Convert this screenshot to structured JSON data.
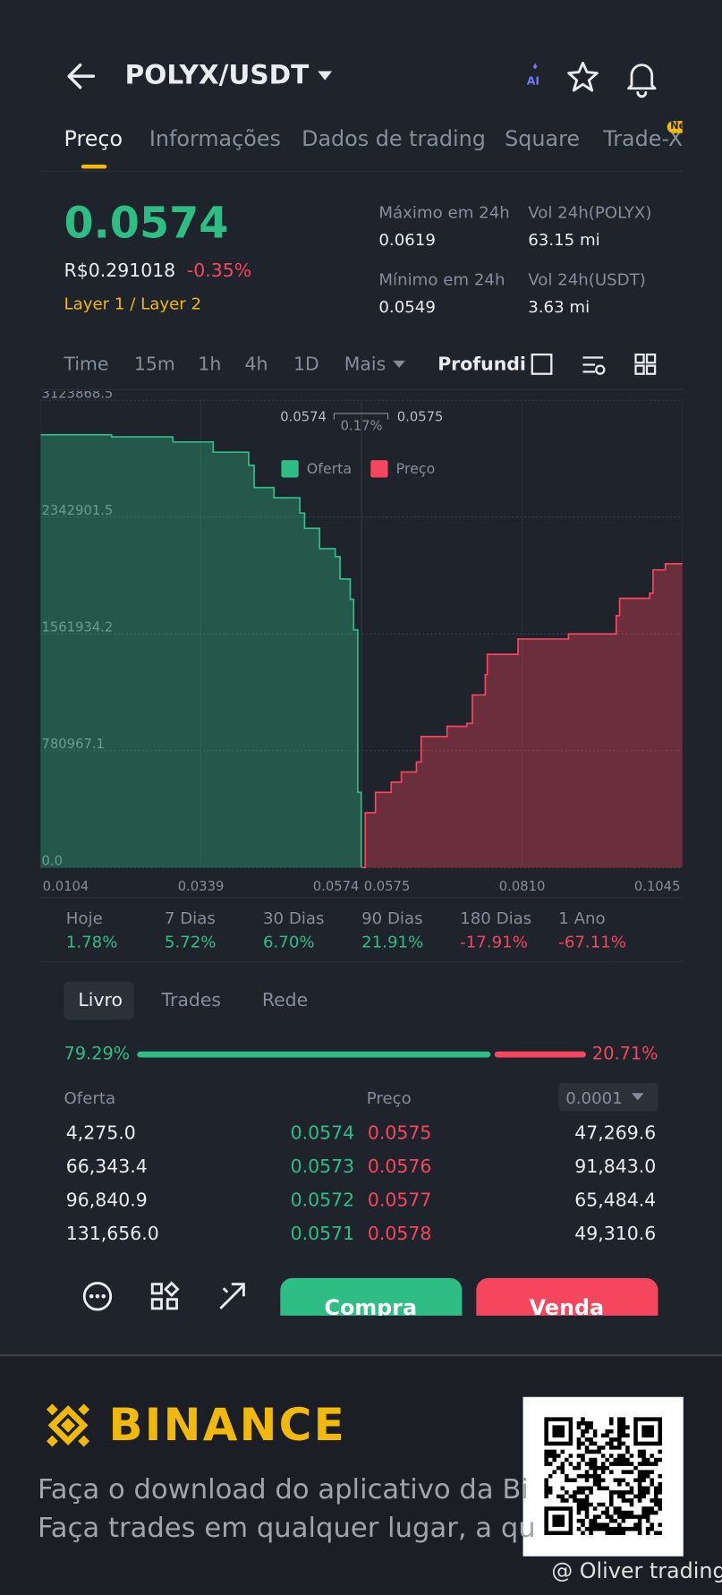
{
  "header": {
    "title": "POLYX/USDT",
    "ai_badge": "AI"
  },
  "tabs": {
    "items": [
      "Preço",
      "Informações",
      "Dados de trading",
      "Square",
      "Trade-X"
    ],
    "badge": "New"
  },
  "price": {
    "last": "0.0574",
    "fiat": "R$0.291018",
    "change": "-0.35%",
    "tag": "Layer 1 / Layer 2"
  },
  "stats": [
    {
      "label": "Máximo em 24h",
      "value": "0.0619"
    },
    {
      "label": "Vol 24h(POLYX)",
      "value": "63.15 mi"
    },
    {
      "label": "Mínimo em 24h",
      "value": "0.0549"
    },
    {
      "label": "Vol 24h(USDT)",
      "value": "3.63 mi"
    }
  ],
  "intervals": {
    "items": [
      "Time",
      "15m",
      "1h",
      "4h",
      "1D",
      "Mais"
    ],
    "active": "Profundidade"
  },
  "chart_data": {
    "type": "depth",
    "series": [
      {
        "name": "Oferta",
        "color": "#2ebd85",
        "x": [
          0.0104,
          0.0208,
          0.0298,
          0.0357,
          0.0409,
          0.0417,
          0.0446,
          0.0484,
          0.0491,
          0.0513,
          0.0536,
          0.0543,
          0.0558,
          0.0563,
          0.0569,
          0.0574
        ],
        "values": [
          2893000,
          2879000,
          2845000,
          2777000,
          2689000,
          2540000,
          2472000,
          2370000,
          2268000,
          2132000,
          2078000,
          1929000,
          1793000,
          1589000,
          503000,
          0
        ]
      },
      {
        "name": "Preço",
        "color": "#f6465d",
        "x": [
          0.0575,
          0.058,
          0.0595,
          0.0618,
          0.0633,
          0.0655,
          0.0662,
          0.07,
          0.0729,
          0.0737,
          0.0756,
          0.0759,
          0.0804,
          0.0878,
          0.0948,
          0.0953,
          0.0997,
          0.1002,
          0.102,
          0.1045
        ],
        "values": [
          0,
          367000,
          503000,
          571000,
          639000,
          706000,
          876000,
          944000,
          964000,
          1154000,
          1290000,
          1426000,
          1528000,
          1562000,
          1684000,
          1800000,
          1834000,
          1990000,
          2031000,
          2037000
        ]
      }
    ],
    "xlim": [
      0.0104,
      0.1045
    ],
    "xticks": [
      0.0104,
      0.0339,
      0.0574,
      0.0575,
      {
        "value": 0.081,
        "label": "0.0810"
      },
      0.1045
    ],
    "ylim": [
      0,
      3123868.5
    ],
    "yticks": [
      {
        "value": 0,
        "label": "0.0"
      },
      780967.1,
      1561934.2,
      2342901.5,
      3123868.5
    ],
    "grid": true,
    "annotations": {
      "bid": "0.0574",
      "spread": "0.17%",
      "ask": "0.0575"
    }
  },
  "periods": [
    {
      "label": "Hoje",
      "value": "1.78%"
    },
    {
      "label": "7 Dias",
      "value": "5.72%"
    },
    {
      "label": "30 Dias",
      "value": "6.70%"
    },
    {
      "label": "90 Dias",
      "value": "21.91%"
    },
    {
      "label": "180 Dias",
      "value": "-17.91%"
    },
    {
      "label": "1 Ano",
      "value": "-67.11%"
    }
  ],
  "orderbook": {
    "tabs": [
      "Livro",
      "Trades",
      "Rede"
    ],
    "buy_ratio": {
      "value": 79.29,
      "label": "79.29%"
    },
    "sell_ratio": {
      "value": 20.71,
      "label": "20.71%"
    },
    "headers": {
      "bid": "Oferta",
      "ask": "Preço",
      "step": "0.0001"
    },
    "bids": [
      [
        "4,275.0",
        "0.0574"
      ],
      [
        "66,343.4",
        "0.0573"
      ],
      [
        "96,840.9",
        "0.0572"
      ],
      [
        "131,656.0",
        "0.0571"
      ]
    ],
    "asks": [
      [
        "0.0575",
        "47,269.6"
      ],
      [
        "0.0576",
        "91,843.0"
      ],
      [
        "0.0577",
        "65,484.4"
      ],
      [
        "0.0578",
        "49,310.6"
      ]
    ]
  },
  "actions": {
    "buy": "Compra",
    "sell": "Venda"
  },
  "footer": {
    "brand": "BINANCE",
    "lines": [
      "Faça o download do aplicativo da Bi",
      "Faça trades em qualquer lugar, a qu"
    ],
    "watermark": "@ Oliver trading"
  }
}
